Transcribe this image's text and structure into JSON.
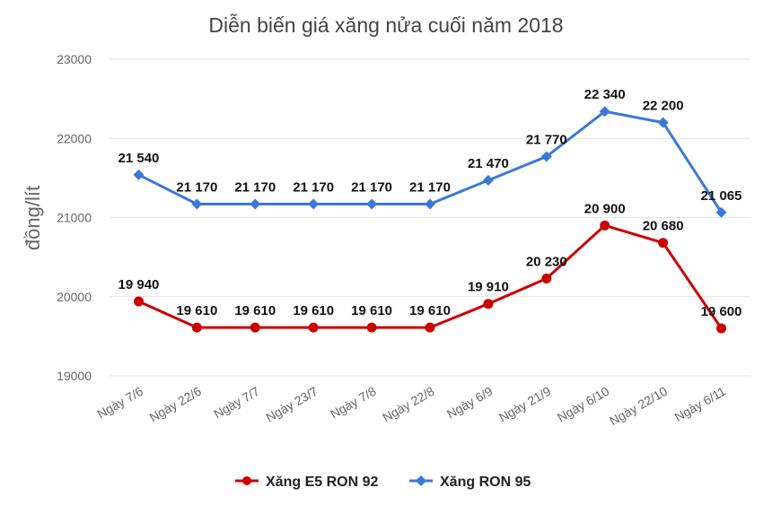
{
  "chart_data": {
    "type": "line",
    "title": "Diễn biến giá xăng nửa cuối năm 2018",
    "ylabel": "đồng/lít",
    "xlabel": "",
    "ylim": [
      19000,
      23000
    ],
    "yticks": [
      "19000",
      "20000",
      "21000",
      "22000",
      "23000"
    ],
    "grid": true,
    "legend_position": "bottom",
    "categories": [
      "Ngày 7/6",
      "Ngày 22/6",
      "Ngày 7/7",
      "Ngày 23/7",
      "Ngày 7/8",
      "Ngày 22/8",
      "Ngày 6/9",
      "Ngày 21/9",
      "Ngày 6/10",
      "Ngày 22/10",
      "Ngày 6/11"
    ],
    "series": [
      {
        "name": "Xăng E5 RON 92",
        "color": "#cc0000",
        "marker": "circle",
        "values": [
          19940,
          19610,
          19610,
          19610,
          19610,
          19610,
          19910,
          20230,
          20900,
          20680,
          19600
        ],
        "labels": [
          "19 940",
          "19 610",
          "19 610",
          "19 610",
          "19 610",
          "19 610",
          "19 910",
          "20 230",
          "20 900",
          "20 680",
          "19 600"
        ]
      },
      {
        "name": "Xăng RON 95",
        "color": "#3c78d8",
        "marker": "diamond",
        "values": [
          21540,
          21170,
          21170,
          21170,
          21170,
          21170,
          21470,
          21770,
          22340,
          22200,
          21065
        ],
        "labels": [
          "21 540",
          "21 170",
          "21 170",
          "21 170",
          "21 170",
          "21 170",
          "21 470",
          "21 770",
          "22 340",
          "22 200",
          "21 065"
        ]
      }
    ]
  }
}
